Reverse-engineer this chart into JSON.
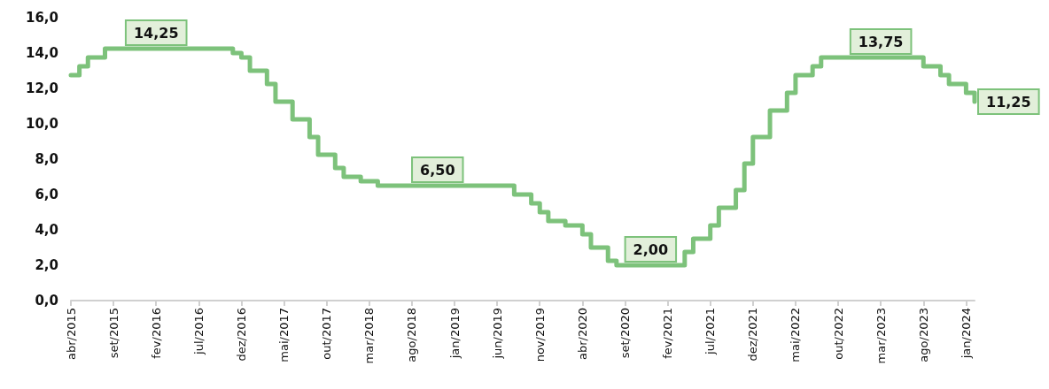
{
  "chart_data": {
    "type": "step",
    "categories": [
      "abr/2015",
      null,
      null,
      null,
      null,
      "set/2015",
      null,
      null,
      null,
      null,
      "fev/2016",
      null,
      null,
      null,
      null,
      "jul/2016",
      null,
      null,
      null,
      null,
      "dez/2016",
      null,
      null,
      null,
      null,
      "mai/2017",
      null,
      null,
      null,
      null,
      "out/2017",
      null,
      null,
      null,
      null,
      "mar/2018",
      null,
      null,
      null,
      null,
      "ago/2018",
      null,
      null,
      null,
      null,
      "jan/2019",
      null,
      null,
      null,
      null,
      "jun/2019",
      null,
      null,
      null,
      null,
      "nov/2019",
      null,
      null,
      null,
      null,
      "abr/2020",
      null,
      null,
      null,
      null,
      "set/2020",
      null,
      null,
      null,
      null,
      "fev/2021",
      null,
      null,
      null,
      null,
      "jul/2021",
      null,
      null,
      null,
      null,
      "dez/2021",
      null,
      null,
      null,
      null,
      "mai/2022",
      null,
      null,
      null,
      null,
      "out/2022",
      null,
      null,
      null,
      null,
      "mar/2023",
      null,
      null,
      null,
      null,
      "ago/2023",
      null,
      null,
      null,
      null,
      "jan/2024",
      null
    ],
    "series": [
      {
        "color": "#7dc27b",
        "values": [
          12.75,
          13.25,
          13.75,
          13.75,
          14.25,
          14.25,
          14.25,
          14.25,
          14.25,
          14.25,
          14.25,
          14.25,
          14.25,
          14.25,
          14.25,
          14.25,
          14.25,
          14.25,
          14.25,
          14.0,
          13.75,
          13.0,
          13.0,
          12.25,
          11.25,
          11.25,
          10.25,
          10.25,
          9.25,
          8.25,
          8.25,
          7.5,
          7.0,
          7.0,
          6.75,
          6.75,
          6.5,
          6.5,
          6.5,
          6.5,
          6.5,
          6.5,
          6.5,
          6.5,
          6.5,
          6.5,
          6.5,
          6.5,
          6.5,
          6.5,
          6.5,
          6.5,
          6.0,
          6.0,
          5.5,
          5.0,
          4.5,
          4.5,
          4.25,
          4.25,
          3.75,
          3.0,
          3.0,
          2.25,
          2.0,
          2.0,
          2.0,
          2.0,
          2.0,
          2.0,
          2.0,
          2.0,
          2.75,
          3.5,
          3.5,
          4.25,
          5.25,
          5.25,
          6.25,
          7.75,
          9.25,
          9.25,
          10.75,
          10.75,
          11.75,
          12.75,
          12.75,
          13.25,
          13.75,
          13.75,
          13.75,
          13.75,
          13.75,
          13.75,
          13.75,
          13.75,
          13.75,
          13.75,
          13.75,
          13.75,
          13.25,
          13.25,
          12.75,
          12.25,
          12.25,
          11.75,
          11.25
        ],
        "value_labels": [
          null,
          null,
          null,
          null,
          null,
          null,
          null,
          null,
          null,
          null,
          "14,25",
          null,
          null,
          null,
          null,
          null,
          null,
          null,
          null,
          null,
          null,
          null,
          null,
          null,
          null,
          null,
          null,
          null,
          null,
          null,
          null,
          null,
          null,
          null,
          null,
          null,
          null,
          null,
          null,
          null,
          null,
          null,
          null,
          "6,50",
          null,
          null,
          null,
          null,
          null,
          null,
          null,
          null,
          null,
          null,
          null,
          null,
          null,
          null,
          null,
          null,
          null,
          null,
          null,
          null,
          null,
          null,
          null,
          null,
          "2,00",
          null,
          null,
          null,
          null,
          null,
          null,
          null,
          null,
          null,
          null,
          null,
          null,
          null,
          null,
          null,
          null,
          null,
          null,
          null,
          null,
          null,
          null,
          null,
          null,
          null,
          null,
          "13,75",
          null,
          null,
          null,
          null,
          null,
          null,
          null,
          null,
          null,
          null,
          "11,25"
        ]
      }
    ],
    "ylim": [
      0,
      16
    ],
    "yticks": [
      {
        "value": 0,
        "label": "0,0"
      },
      {
        "value": 2,
        "label": "2,0"
      },
      {
        "value": 4,
        "label": "4,0"
      },
      {
        "value": 6,
        "label": "6,0"
      },
      {
        "value": 8,
        "label": "8,0"
      },
      {
        "value": 10,
        "label": "10,0"
      },
      {
        "value": 12,
        "label": "12,0"
      },
      {
        "value": 14,
        "label": "14,0"
      },
      {
        "value": 16,
        "label": "16,0"
      }
    ],
    "grid": false,
    "marker": "none",
    "line_style": "solid"
  }
}
